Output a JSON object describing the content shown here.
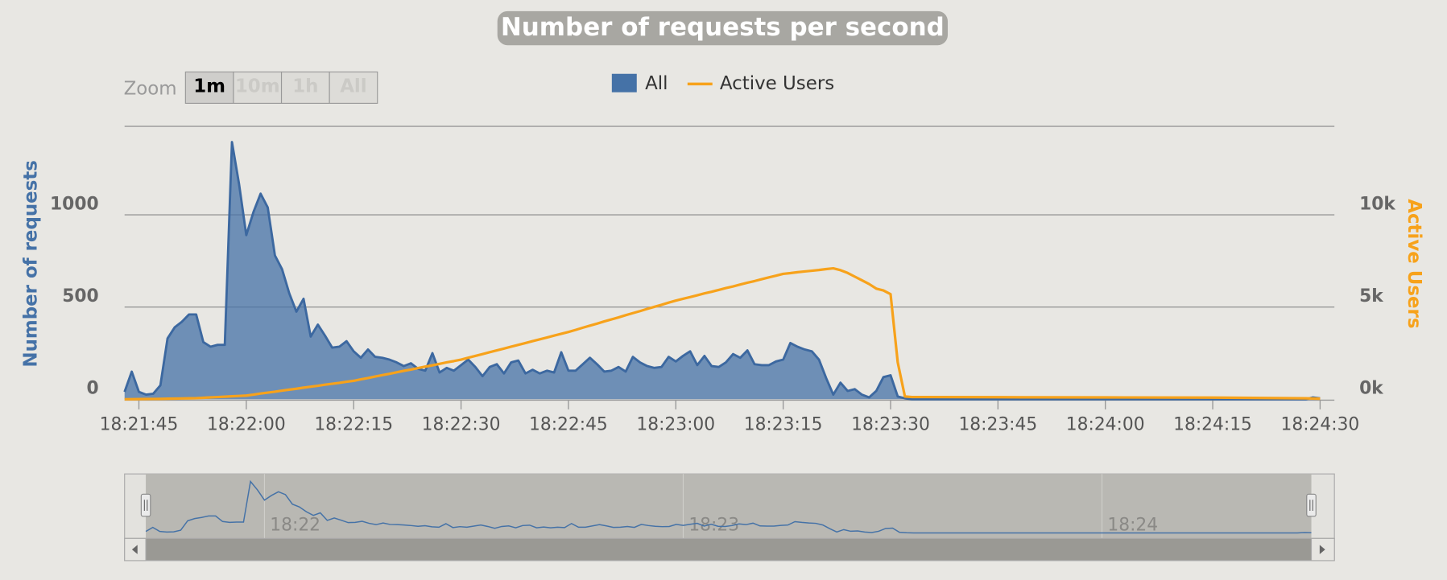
{
  "chart_data": {
    "type": "area",
    "title": "Number of requests per second",
    "y_label": "Number of requests",
    "y2_label": "Active Users",
    "legend": "top",
    "zoom": {
      "label": "Zoom",
      "buttons": [
        "1m",
        "10m",
        "1h",
        "All"
      ],
      "selected": 0
    },
    "x": [
      "18:21:43",
      "18:21:44",
      "18:21:45",
      "18:21:46",
      "18:21:47",
      "18:21:48",
      "18:21:49",
      "18:21:50",
      "18:21:51",
      "18:21:52",
      "18:21:53",
      "18:21:54",
      "18:21:55",
      "18:21:56",
      "18:21:57",
      "18:21:58",
      "18:21:59",
      "18:22:00",
      "18:22:01",
      "18:22:02",
      "18:22:03",
      "18:22:04",
      "18:22:05",
      "18:22:06",
      "18:22:07",
      "18:22:08",
      "18:22:09",
      "18:22:10",
      "18:22:11",
      "18:22:12",
      "18:22:13",
      "18:22:14",
      "18:22:15",
      "18:22:16",
      "18:22:17",
      "18:22:18",
      "18:22:19",
      "18:22:20",
      "18:22:21",
      "18:22:22",
      "18:22:23",
      "18:22:24",
      "18:22:25",
      "18:22:26",
      "18:22:27",
      "18:22:28",
      "18:22:29",
      "18:22:30",
      "18:22:31",
      "18:22:32",
      "18:22:33",
      "18:22:34",
      "18:22:35",
      "18:22:36",
      "18:22:37",
      "18:22:38",
      "18:22:39",
      "18:22:40",
      "18:22:41",
      "18:22:42",
      "18:22:43",
      "18:22:44",
      "18:22:45",
      "18:22:46",
      "18:22:47",
      "18:22:48",
      "18:22:49",
      "18:22:50",
      "18:22:51",
      "18:22:52",
      "18:22:53",
      "18:22:54",
      "18:22:55",
      "18:22:56",
      "18:22:57",
      "18:22:58",
      "18:22:59",
      "18:23:00",
      "18:23:01",
      "18:23:02",
      "18:23:03",
      "18:23:04",
      "18:23:05",
      "18:23:06",
      "18:23:07",
      "18:23:08",
      "18:23:09",
      "18:23:10",
      "18:23:11",
      "18:23:12",
      "18:23:13",
      "18:23:14",
      "18:23:15",
      "18:23:16",
      "18:23:17",
      "18:23:18",
      "18:23:19",
      "18:23:20",
      "18:23:21",
      "18:23:22",
      "18:23:23",
      "18:23:24",
      "18:23:25",
      "18:23:26",
      "18:23:27",
      "18:23:28",
      "18:23:29",
      "18:23:30",
      "18:23:31",
      "18:23:32",
      "18:23:33",
      "18:23:45",
      "18:24:00",
      "18:24:15",
      "18:24:28",
      "18:24:29",
      "18:24:30"
    ],
    "series": [
      {
        "name": "All",
        "color": "#4572a7",
        "values": [
          40,
          150,
          40,
          25,
          30,
          75,
          330,
          390,
          420,
          460,
          460,
          310,
          285,
          295,
          295,
          1395,
          1165,
          890,
          1015,
          1115,
          1040,
          780,
          705,
          575,
          475,
          545,
          340,
          405,
          345,
          280,
          285,
          315,
          260,
          225,
          270,
          230,
          225,
          215,
          200,
          180,
          195,
          165,
          155,
          250,
          145,
          170,
          155,
          185,
          215,
          175,
          125,
          175,
          190,
          140,
          200,
          210,
          140,
          160,
          140,
          155,
          145,
          255,
          155,
          155,
          190,
          225,
          190,
          150,
          155,
          175,
          150,
          230,
          200,
          180,
          170,
          175,
          230,
          205,
          235,
          260,
          185,
          235,
          180,
          175,
          200,
          245,
          225,
          265,
          190,
          185,
          185,
          205,
          215,
          305,
          285,
          270,
          260,
          215,
          115,
          25,
          90,
          45,
          55,
          25,
          10,
          45,
          120,
          130,
          15,
          5,
          0,
          0,
          0,
          0,
          0,
          10,
          5
        ]
      },
      {
        "name": "Active Users",
        "type": "line",
        "axis": "y2",
        "color": "#f7a21b",
        "values": [
          0,
          4,
          8,
          12,
          16,
          20,
          28,
          36,
          44,
          52,
          60,
          80,
          100,
          120,
          140,
          160,
          180,
          200,
          250,
          310,
          360,
          410,
          470,
          520,
          570,
          630,
          680,
          730,
          790,
          840,
          890,
          950,
          1000,
          1080,
          1150,
          1230,
          1310,
          1380,
          1460,
          1540,
          1610,
          1690,
          1770,
          1840,
          1920,
          2000,
          2070,
          2150,
          2250,
          2350,
          2450,
          2550,
          2650,
          2750,
          2850,
          2950,
          3050,
          3150,
          3250,
          3350,
          3450,
          3550,
          3650,
          3760,
          3880,
          3990,
          4100,
          4220,
          4330,
          4440,
          4560,
          4670,
          4780,
          4900,
          5010,
          5120,
          5240,
          5350,
          5450,
          5540,
          5640,
          5740,
          5830,
          5930,
          6030,
          6120,
          6220,
          6320,
          6410,
          6510,
          6610,
          6700,
          6800,
          6840,
          6890,
          6930,
          6970,
          7010,
          7060,
          7100,
          7000,
          6850,
          6650,
          6450,
          6250,
          6000,
          5900,
          5700,
          2000,
          150,
          120,
          110,
          100,
          90,
          50,
          40,
          30
        ]
      }
    ],
    "xlim": [
      "18:21:43",
      "18:24:32"
    ],
    "xticks": [
      "18:21:45",
      "18:22:00",
      "18:22:15",
      "18:22:30",
      "18:22:45",
      "18:23:00",
      "18:23:15",
      "18:23:30",
      "18:23:45",
      "18:24:00",
      "18:24:15",
      "18:24:30"
    ],
    "ylim": [
      0,
      1500
    ],
    "yticks": [
      0,
      500,
      1000
    ],
    "y2lim": [
      0,
      15000
    ],
    "y2ticks": [
      {
        "value": 0,
        "label": "0k"
      },
      {
        "value": 5000,
        "label": "5k"
      },
      {
        "value": 10000,
        "label": "10k"
      }
    ],
    "grid": true,
    "navigator": {
      "xticks": [
        {
          "value": "18:22:00",
          "label": "18:22"
        },
        {
          "value": "18:23:00",
          "label": "18:23"
        },
        {
          "value": "18:24:00",
          "label": "18:24"
        }
      ]
    }
  }
}
